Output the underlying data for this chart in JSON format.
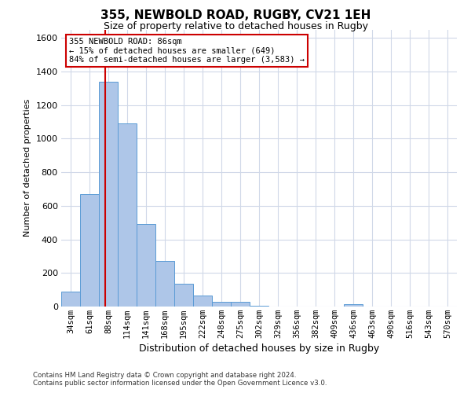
{
  "title1": "355, NEWBOLD ROAD, RUGBY, CV21 1EH",
  "title2": "Size of property relative to detached houses in Rugby",
  "xlabel": "Distribution of detached houses by size in Rugby",
  "ylabel": "Number of detached properties",
  "categories": [
    "34sqm",
    "61sqm",
    "88sqm",
    "114sqm",
    "141sqm",
    "168sqm",
    "195sqm",
    "222sqm",
    "248sqm",
    "275sqm",
    "302sqm",
    "329sqm",
    "356sqm",
    "382sqm",
    "409sqm",
    "436sqm",
    "463sqm",
    "490sqm",
    "516sqm",
    "543sqm",
    "570sqm"
  ],
  "values": [
    90,
    670,
    1340,
    1090,
    490,
    270,
    135,
    65,
    30,
    30,
    5,
    0,
    0,
    0,
    0,
    15,
    0,
    0,
    0,
    0,
    0
  ],
  "bar_color": "#aec6e8",
  "bar_edge_color": "#5b9bd5",
  "vline_x_index": 1.85,
  "vline_color": "#cc0000",
  "annotation_text": "355 NEWBOLD ROAD: 86sqm\n← 15% of detached houses are smaller (649)\n84% of semi-detached houses are larger (3,583) →",
  "annotation_box_color": "#ffffff",
  "annotation_edge_color": "#cc0000",
  "ylim": [
    0,
    1650
  ],
  "yticks": [
    0,
    200,
    400,
    600,
    800,
    1000,
    1200,
    1400,
    1600
  ],
  "footnote": "Contains HM Land Registry data © Crown copyright and database right 2024.\nContains public sector information licensed under the Open Government Licence v3.0.",
  "grid_color": "#d0d8e8",
  "background_color": "#ffffff",
  "title1_fontsize": 11,
  "title2_fontsize": 9
}
